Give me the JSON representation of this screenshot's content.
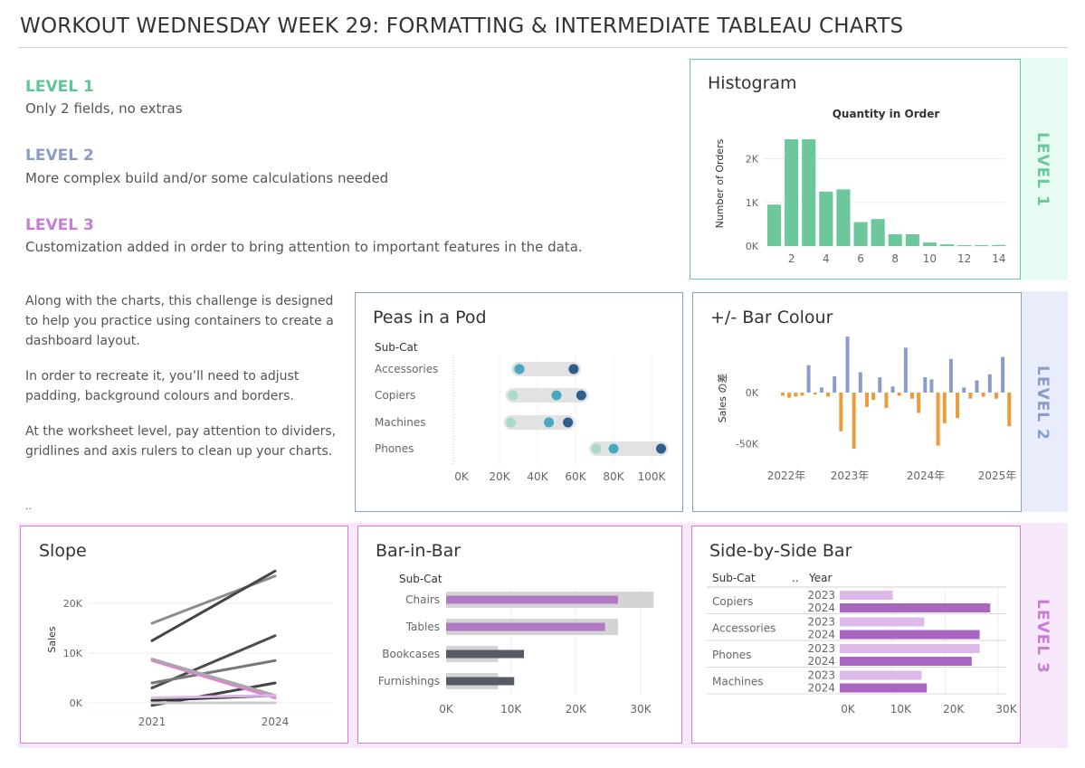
{
  "title": "WORKOUT WEDNESDAY WEEK 29: FORMATTING & INTERMEDIATE TABLEAU CHARTS",
  "levels": [
    {
      "heading": "LEVEL 1",
      "desc": "Only 2 fields, no extras",
      "color": "#5ec696"
    },
    {
      "heading": "LEVEL 2",
      "desc": "More complex build and/or some calculations needed",
      "color": "#8a9cc9"
    },
    {
      "heading": "LEVEL 3",
      "desc": "Customization added in order to bring attention to important features in the data.",
      "color": "#c77dd8"
    }
  ],
  "intro": {
    "p1": "Along with the charts, this challenge is designed to help you practice using containers to create a dashboard layout.",
    "p2": "In order to recreate it, you’ll need to adjust padding, background colours and borders.",
    "p3": "At the worksheet level, pay attention to dividers, gridlines and axis rulers to clean up your charts.",
    "p4": ".."
  },
  "side_labels": {
    "l1": "LEVEL 1",
    "l2": "LEVEL 2",
    "l3": "LEVEL 3"
  },
  "colors": {
    "green": "#6cc89b",
    "green_bg": "#e6fbf1",
    "blue": "#8a9cc9",
    "blue_bg": "#e9edfb",
    "purple": "#c77dd8",
    "purple_bg": "#f7e8fb",
    "orange": "#ee9a3a",
    "dark": "#3e5f8a"
  },
  "chart_data": [
    {
      "id": "histogram",
      "type": "bar",
      "title": "Histogram",
      "subtitle": "Quantity in Order",
      "ylabel": "Number of Orders",
      "x": [
        1,
        2,
        3,
        4,
        5,
        6,
        7,
        8,
        9,
        10,
        11,
        12,
        13,
        14
      ],
      "values": [
        950,
        2450,
        2450,
        1250,
        1300,
        550,
        620,
        270,
        270,
        80,
        40,
        20,
        20,
        25
      ],
      "xticks": [
        "2",
        "4",
        "6",
        "8",
        "10",
        "12",
        "14"
      ],
      "yticks": [
        "0K",
        "1K",
        "2K"
      ],
      "ylim": [
        0,
        2800
      ]
    },
    {
      "id": "peas",
      "type": "scatter",
      "title": "Peas in a Pod",
      "row_header": "Sub-Cat",
      "categories": [
        "Accessories",
        "Copiers",
        "Machines",
        "Phones"
      ],
      "series": [
        {
          "values": [
            30000,
            27000,
            26000,
            71000
          ]
        },
        {
          "values": [
            30500,
            50000,
            46000,
            80000
          ]
        },
        {
          "values": [
            59000,
            63000,
            56000,
            105000
          ]
        }
      ],
      "xticks": [
        "0K",
        "20K",
        "40K",
        "60K",
        "80K",
        "100K"
      ],
      "xlim": [
        0,
        110000
      ]
    },
    {
      "id": "plusminus",
      "type": "bar",
      "title": "+/- Bar Colour",
      "ylabel": "Sales の差",
      "values": [
        -3000,
        -5000,
        -4000,
        -3000,
        27000,
        -2000,
        5000,
        -4000,
        16000,
        -38000,
        55000,
        -55000,
        20000,
        -14000,
        -7000,
        15000,
        -15000,
        6000,
        -3000,
        44000,
        -6000,
        -20000,
        15000,
        13000,
        -52000,
        -30000,
        33000,
        -25000,
        5000,
        -6000,
        12000,
        -4000,
        18000,
        -6000,
        35000,
        -33000
      ],
      "xticks": [
        "2022年",
        "2023年",
        "2024年",
        "2025年"
      ],
      "yticks": [
        "0K",
        "-50K"
      ],
      "ylim": [
        -65000,
        50000
      ]
    },
    {
      "id": "slope",
      "type": "line",
      "title": "Slope",
      "ylabel": "Sales",
      "xticks": [
        "2021",
        "2024"
      ],
      "yticks": [
        "0K",
        "10K",
        "20K"
      ],
      "ylim": [
        -1500,
        27000
      ],
      "series": [
        {
          "values": [
            16000,
            25500
          ],
          "color": "#8c8c8c"
        },
        {
          "values": [
            12500,
            26500
          ],
          "color": "#444444"
        },
        {
          "values": [
            3000,
            13500
          ],
          "color": "#4d4d4d"
        },
        {
          "values": [
            4000,
            8500
          ],
          "color": "#777777"
        },
        {
          "values": [
            -500,
            4000
          ],
          "color": "#444444"
        },
        {
          "values": [
            500,
            1500
          ],
          "color": "#333333"
        },
        {
          "values": [
            8500,
            1000
          ],
          "color": "#e081d8"
        },
        {
          "values": [
            8800,
            1500
          ],
          "color": "#a8a8a8"
        },
        {
          "values": [
            1000,
            1500
          ],
          "color": "#dcb4e6"
        },
        {
          "values": [
            0,
            0
          ],
          "color": "#cccccc"
        }
      ]
    },
    {
      "id": "barinbar",
      "type": "bar",
      "title": "Bar-in-Bar",
      "row_header": "Sub-Cat",
      "categories": [
        "Chairs",
        "Tables",
        "Bookcases",
        "Furnishings"
      ],
      "series": [
        {
          "values": [
            32000,
            26500,
            8000,
            8000
          ],
          "color": "#d4d4d4"
        },
        {
          "values": [
            26500,
            24500,
            12000,
            10500
          ],
          "color": "#b079c4"
        }
      ],
      "xticks": [
        "0K",
        "10K",
        "20K",
        "30K"
      ],
      "xlim": [
        0,
        33000
      ]
    },
    {
      "id": "sidebyside",
      "type": "bar",
      "title": "Side-by-Side Bar",
      "row_header": "Sub-Cat",
      "col_sep": "..",
      "year_header": "Year",
      "categories": [
        "Copiers",
        "Accessories",
        "Phones",
        "Machines"
      ],
      "years": [
        "2023",
        "2024"
      ],
      "series": [
        {
          "name": "2023",
          "values": [
            10000,
            16000,
            26500,
            15500
          ],
          "color": "#ddb8e8"
        },
        {
          "name": "2024",
          "values": [
            28500,
            26500,
            25000,
            16500
          ],
          "color": "#a965c0"
        }
      ],
      "xticks": [
        "0K",
        "10K",
        "20K",
        "30K"
      ],
      "xlim": [
        0,
        30500
      ]
    }
  ]
}
